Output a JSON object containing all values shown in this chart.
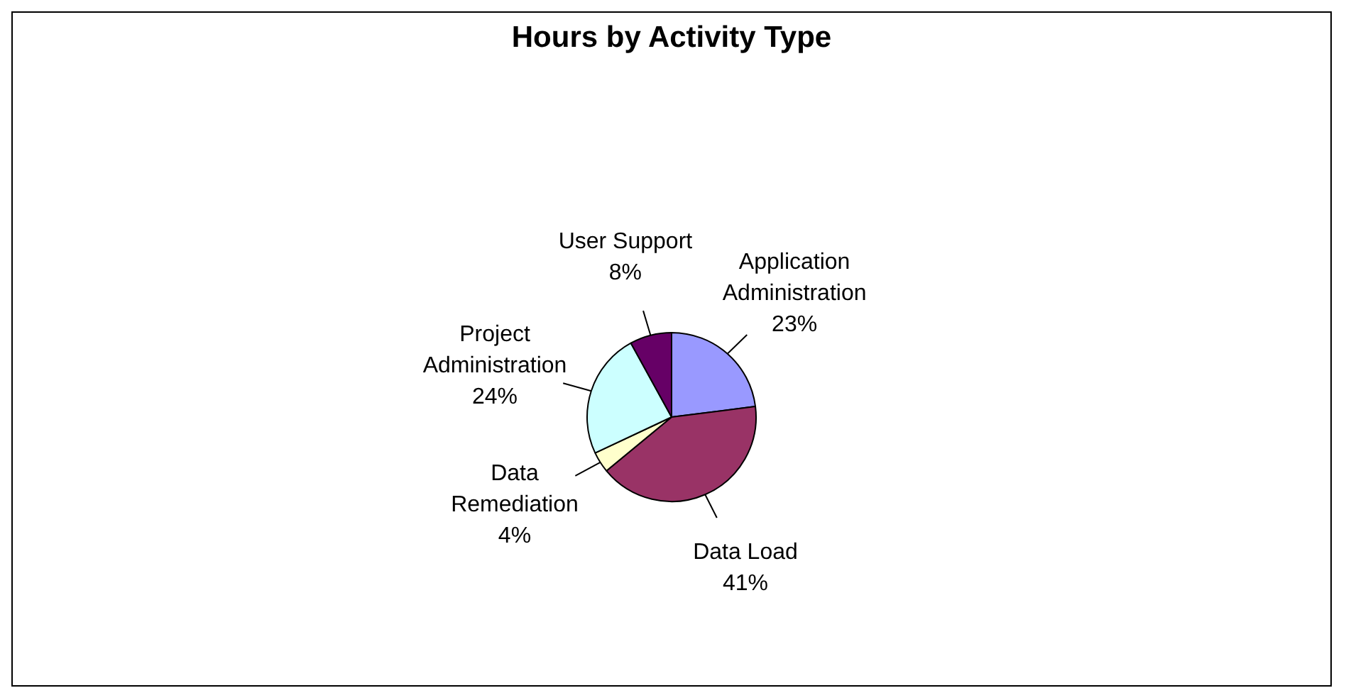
{
  "chart_data": {
    "type": "pie",
    "title": "Hours by Activity Type",
    "categories": [
      "Application Administration",
      "Data Load",
      "Data Remediation",
      "Project Administration",
      "User Support"
    ],
    "values": [
      23,
      41,
      4,
      24,
      8
    ],
    "value_labels": [
      "23%",
      "41%",
      "4%",
      "24%",
      "8%"
    ],
    "colors": [
      "#9999ff",
      "#993366",
      "#ffffcc",
      "#ccffff",
      "#660066"
    ],
    "legend": false
  }
}
